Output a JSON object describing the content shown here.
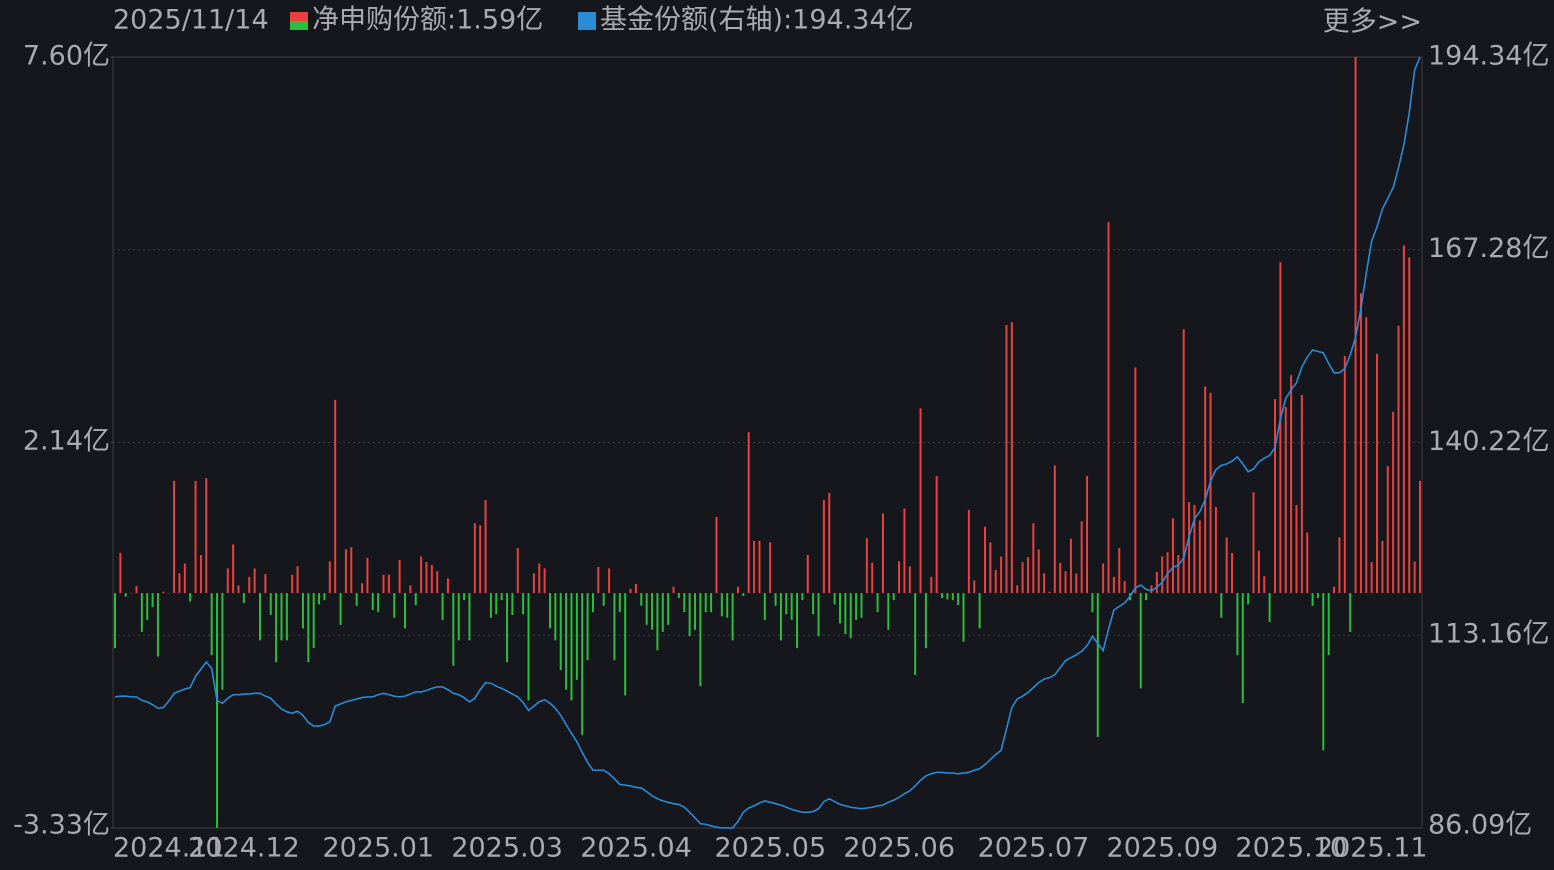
{
  "header": {
    "date": "2025/11/14",
    "more_link": "更多>>"
  },
  "chart_data": {
    "type": "bar-line",
    "categories": [
      "2024.11",
      null,
      null,
      null,
      null,
      null,
      null,
      null,
      null,
      null,
      null,
      null,
      null,
      null,
      "2024.12",
      null,
      null,
      null,
      null,
      null,
      null,
      null,
      null,
      null,
      null,
      null,
      null,
      null,
      null,
      null,
      null,
      null,
      null,
      null,
      null,
      null,
      null,
      null,
      null,
      "2025.01",
      null,
      null,
      null,
      null,
      null,
      null,
      null,
      null,
      null,
      null,
      null,
      null,
      null,
      null,
      null,
      null,
      null,
      null,
      null,
      null,
      null,
      null,
      null,
      "2025.03",
      null,
      null,
      null,
      null,
      null,
      null,
      null,
      null,
      null,
      null,
      null,
      null,
      null,
      null,
      null,
      null,
      null,
      null,
      null,
      null,
      null,
      null,
      null,
      "2025.04",
      null,
      null,
      null,
      null,
      null,
      null,
      null,
      null,
      null,
      null,
      null,
      null,
      null,
      null,
      null,
      null,
      null,
      null,
      null,
      null,
      null,
      null,
      null,
      null,
      "2025.05",
      null,
      null,
      null,
      null,
      null,
      null,
      null,
      null,
      null,
      null,
      null,
      null,
      null,
      null,
      null,
      null,
      null,
      null,
      null,
      null,
      null,
      null,
      null,
      "2025.06",
      null,
      null,
      null,
      null,
      null,
      null,
      null,
      null,
      null,
      null,
      null,
      null,
      null,
      null,
      null,
      null,
      null,
      null,
      null,
      null,
      null,
      null,
      null,
      null,
      "2025.07",
      null,
      null,
      null,
      null,
      null,
      null,
      null,
      null,
      null,
      null,
      null,
      null,
      null,
      null,
      null,
      null,
      null,
      null,
      null,
      null,
      null,
      null,
      null,
      "2025.09",
      null,
      null,
      null,
      null,
      null,
      null,
      null,
      null,
      null,
      null,
      null,
      null,
      null,
      null,
      null,
      null,
      null,
      null,
      null,
      null,
      null,
      null,
      null,
      "2025.10",
      null,
      null,
      null,
      null,
      null,
      null,
      null,
      null,
      null,
      null,
      null,
      null,
      null,
      null,
      "2025.11",
      null,
      null,
      null,
      null,
      null,
      null,
      null,
      null,
      null,
      null,
      null,
      null,
      null,
      null,
      null,
      null,
      null,
      null,
      null
    ],
    "series": [
      {
        "name": "净申购份额:1.59亿",
        "type": "bar",
        "color": "#e8413f",
        "negative_color": "#2dbd3c",
        "values": [
          -0.78,
          0.57,
          -0.05,
          0,
          0.1,
          -0.55,
          -0.38,
          -0.2,
          -0.9,
          0.02,
          0,
          1.59,
          0.28,
          0.42,
          -0.12,
          1.59,
          0.54,
          1.63,
          -0.88,
          -3.33,
          -1.37,
          0.35,
          0.69,
          0.11,
          -0.14,
          0.23,
          0.35,
          -0.67,
          0.27,
          -0.31,
          -0.98,
          -0.67,
          -0.67,
          0.26,
          0.38,
          -0.5,
          -0.98,
          -0.78,
          -0.16,
          -0.1,
          0.45,
          2.74,
          -0.45,
          0.62,
          0.65,
          -0.18,
          0.14,
          0.5,
          -0.24,
          -0.27,
          0.26,
          0.26,
          -0.35,
          0.47,
          -0.5,
          0.11,
          -0.17,
          0.52,
          0.44,
          0.4,
          0.31,
          -0.38,
          0.21,
          -1.03,
          -0.67,
          -0.1,
          -0.67,
          0.99,
          0.96,
          1.32,
          -0.35,
          -0.3,
          -0.1,
          -0.98,
          -0.31,
          0.64,
          -0.3,
          -1.52,
          0.28,
          0.42,
          0.35,
          -0.5,
          -0.67,
          -1.09,
          -1.37,
          -1.52,
          -1.23,
          -2.01,
          -0.95,
          -0.27,
          0.37,
          -0.18,
          0.35,
          -0.95,
          -0.27,
          -1.45,
          0.06,
          0.13,
          -0.18,
          -0.45,
          -0.52,
          -0.81,
          -0.55,
          -0.45,
          0.09,
          -0.07,
          -0.27,
          -0.61,
          -0.52,
          -1.32,
          -0.27,
          -0.27,
          1.08,
          -0.33,
          -0.35,
          -0.67,
          0.09,
          -0.04,
          2.28,
          0.74,
          0.74,
          -0.38,
          0.72,
          -0.18,
          -0.67,
          -0.3,
          -0.38,
          -0.78,
          -0.1,
          0.54,
          -0.3,
          -0.61,
          1.32,
          1.42,
          -0.16,
          -0.43,
          -0.58,
          -0.64,
          -0.38,
          -0.35,
          0.78,
          0.43,
          -0.27,
          1.13,
          -0.52,
          -0.1,
          0.45,
          1.2,
          0.38,
          -1.16,
          2.62,
          -0.78,
          0.23,
          1.66,
          -0.07,
          -0.09,
          -0.1,
          -0.17,
          -0.69,
          1.18,
          0.18,
          -0.5,
          0.94,
          0.72,
          0.33,
          0.52,
          3.8,
          3.84,
          0.11,
          0.44,
          0.51,
          0.99,
          0.62,
          0.28,
          0.02,
          1.81,
          0.43,
          0.31,
          0.77,
          0.28,
          1.02,
          1.66,
          -0.27,
          -2.04,
          0.42,
          5.26,
          0.23,
          0.64,
          0.17,
          -0.1,
          3.2,
          -1.35,
          -0.1,
          0.11,
          0.3,
          0.52,
          0.58,
          1.06,
          0.54,
          3.74,
          1.29,
          1.25,
          1.03,
          2.93,
          2.84,
          1.22,
          -0.35,
          0.79,
          0.57,
          -0.88,
          -1.56,
          -0.16,
          1.43,
          0.6,
          0.24,
          -0.41,
          2.75,
          4.69,
          2.64,
          3.09,
          1.25,
          2.81,
          0.86,
          -0.18,
          -0.07,
          -2.23,
          -0.88,
          0.09,
          0.79,
          3.36,
          -0.55,
          7.6,
          4.25,
          3.91,
          0.44,
          3.39,
          0.74,
          1.8,
          2.57,
          3.79,
          4.93,
          4.76,
          0.45,
          1.59
        ]
      },
      {
        "name": "基金份额(右轴):194.34亿",
        "type": "line",
        "axis": "y2",
        "color": "#2a8bd6",
        "values": [
          104.5,
          104.6,
          104.6,
          104.5,
          104.5,
          104.0,
          103.8,
          103.4,
          102.9,
          103.0,
          103.9,
          105.0,
          105.3,
          105.6,
          105.8,
          107.4,
          108.4,
          109.4,
          108.5,
          104.0,
          103.6,
          104.3,
          104.8,
          104.8,
          104.9,
          104.9,
          105.0,
          105.0,
          104.6,
          104.3,
          103.5,
          102.8,
          102.4,
          102.2,
          102.5,
          101.9,
          100.9,
          100.4,
          100.4,
          100.6,
          101.0,
          103.2,
          103.5,
          103.8,
          104.0,
          104.2,
          104.4,
          104.5,
          104.5,
          104.8,
          105.0,
          104.8,
          104.6,
          104.5,
          104.6,
          104.9,
          105.2,
          105.2,
          105.4,
          105.7,
          105.9,
          105.9,
          105.5,
          105.0,
          104.8,
          104.4,
          103.8,
          104.3,
          105.5,
          106.5,
          106.4,
          106.0,
          105.7,
          105.3,
          104.9,
          104.5,
          103.7,
          102.6,
          103.2,
          103.8,
          104.1,
          103.6,
          102.9,
          101.9,
          100.6,
          99.4,
          98.2,
          96.7,
          95.3,
          94.2,
          94.2,
          94.2,
          93.7,
          93.0,
          92.2,
          92.1,
          92.0,
          91.8,
          91.7,
          91.2,
          90.6,
          90.2,
          89.9,
          89.7,
          89.5,
          89.4,
          89.0,
          88.3,
          87.5,
          86.7,
          86.6,
          86.4,
          86.2,
          86.1,
          86.1,
          86.1,
          87.0,
          88.3,
          88.9,
          89.2,
          89.6,
          89.9,
          89.7,
          89.5,
          89.3,
          89.0,
          88.7,
          88.5,
          88.3,
          88.3,
          88.4,
          88.8,
          89.8,
          90.2,
          89.8,
          89.4,
          89.2,
          89.0,
          88.9,
          88.8,
          88.9,
          89.0,
          89.2,
          89.3,
          89.7,
          90.0,
          90.4,
          90.9,
          91.3,
          92.0,
          92.8,
          93.4,
          93.7,
          93.9,
          93.9,
          93.8,
          93.8,
          93.7,
          93.8,
          93.9,
          94.2,
          94.4,
          95.0,
          95.7,
          96.4,
          97.0,
          100.0,
          103.0,
          104.2,
          104.6,
          105.1,
          105.8,
          106.5,
          107.0,
          107.2,
          107.6,
          108.6,
          109.6,
          110.0,
          110.4,
          110.9,
          111.7,
          113.0,
          112.0,
          111.0,
          114.0,
          116.7,
          117.2,
          117.7,
          118.6,
          119.8,
          120.2,
          119.6,
          119.4,
          119.9,
          120.6,
          121.8,
          122.7,
          123.0,
          124.0,
          127.0,
          129.5,
          130.5,
          132.2,
          134.8,
          136.4,
          137.0,
          137.2,
          137.6,
          138.2,
          137.2,
          136.1,
          136.5,
          137.5,
          138.0,
          138.4,
          139.5,
          143.5,
          146.4,
          147.6,
          148.6,
          150.8,
          152.2,
          153.2,
          153.0,
          152.8,
          151.3,
          150.0,
          150.0,
          150.6,
          152.5,
          155.0,
          159.0,
          164.0,
          168.5,
          170.5,
          173.0,
          174.5,
          176.0,
          178.8,
          182.0,
          186.5,
          192.5,
          194.34
        ]
      }
    ],
    "ylim": [
      -3.33,
      7.6
    ],
    "yticks": [
      {
        "value": 7.6,
        "label": "7.60亿"
      },
      {
        "value": 2.14,
        "label": "2.14亿"
      },
      {
        "value": -3.33,
        "label": "-3.33亿"
      }
    ],
    "y2lim": [
      86.09,
      194.34
    ],
    "y2ticks": [
      {
        "value": 194.34,
        "label": "194.34亿"
      },
      {
        "value": 167.28,
        "label": "167.28亿"
      },
      {
        "value": 140.22,
        "label": "140.22亿"
      },
      {
        "value": 113.16,
        "label": "113.16亿"
      },
      {
        "value": 86.09,
        "label": "86.09亿"
      }
    ],
    "grid": true
  }
}
